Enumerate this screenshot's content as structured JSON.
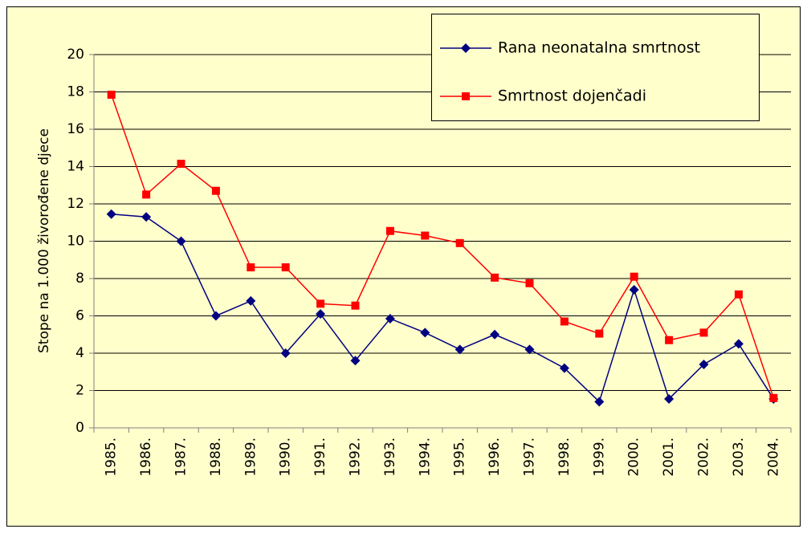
{
  "chart_data": {
    "type": "line",
    "y_label": "Stope na 1.000 živorođene djece",
    "categories": [
      "1985.",
      "1986.",
      "1987.",
      "1988.",
      "1989.",
      "1990.",
      "1991.",
      "1992.",
      "1993.",
      "1994.",
      "1995.",
      "1996.",
      "1997.",
      "1998.",
      "1999.",
      "2000.",
      "2001.",
      "2002.",
      "2003.",
      "2004."
    ],
    "series": [
      {
        "name": "Rana neonatalna smrtnost",
        "color": "#000080",
        "marker": "diamond",
        "values": [
          11.45,
          11.3,
          10,
          6,
          6.8,
          4,
          6.1,
          3.6,
          5.85,
          5.1,
          4.2,
          5,
          4.2,
          3.2,
          1.4,
          7.4,
          1.55,
          3.4,
          4.5,
          1.55
        ]
      },
      {
        "name": "Smrtnost dojenčadi",
        "color": "#ff0000",
        "marker": "square",
        "values": [
          17.85,
          12.5,
          14.15,
          12.7,
          8.6,
          8.6,
          6.65,
          6.55,
          10.55,
          10.3,
          9.9,
          8.05,
          7.75,
          5.7,
          5.05,
          8.1,
          4.7,
          5.1,
          7.15,
          1.6
        ]
      }
    ],
    "ylim": [
      0,
      20
    ],
    "yticks": [
      0,
      2,
      4,
      6,
      8,
      10,
      12,
      14,
      16,
      18,
      20
    ],
    "grid": true,
    "legend": "top-right"
  }
}
